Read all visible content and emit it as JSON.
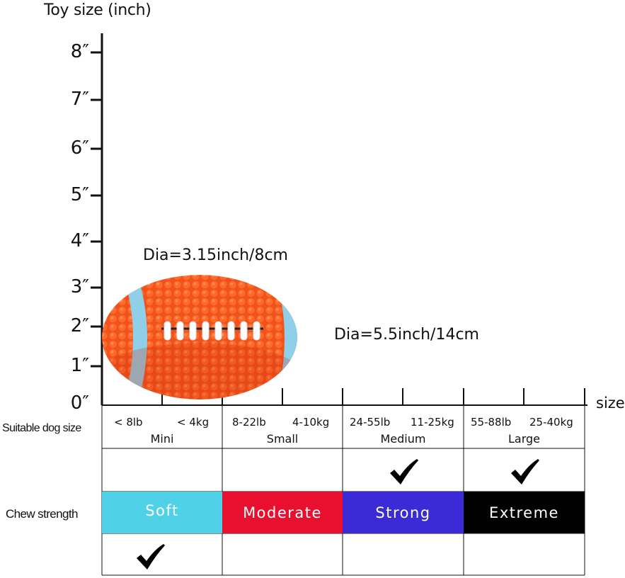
{
  "axis": {
    "title": "Toy size  (inch)",
    "ticks": [
      "8″",
      "7″",
      "6″",
      "5″",
      "4″",
      "3″",
      "2″",
      "1″",
      "0″"
    ],
    "x_label": "size"
  },
  "toy": {
    "image": "orange-football-icon",
    "dia_short": "Dia=3.15inch/8cm",
    "dia_long": "Dia=5.5inch/14cm"
  },
  "dog_size": {
    "heading": "Suitable dog size",
    "columns": [
      {
        "lb": "< 8lb",
        "kg": "< 4kg",
        "name": "Mini",
        "checked": false
      },
      {
        "lb": "8-22lb",
        "kg": "4-10kg",
        "name": "Small",
        "checked": false
      },
      {
        "lb": "24-55lb",
        "kg": "11-25kg",
        "name": "Medium",
        "checked": true
      },
      {
        "lb": "55-88lb",
        "kg": "25-40kg",
        "name": "Large",
        "checked": true
      }
    ]
  },
  "chew_strength": {
    "heading": "Chew strength",
    "levels": [
      {
        "label": "Soft",
        "color": "#4fd1e8",
        "checked": true
      },
      {
        "label": "Moderate",
        "color": "#e8102e",
        "checked": false
      },
      {
        "label": "Strong",
        "color": "#3b2bd6",
        "checked": false
      },
      {
        "label": "Extreme",
        "color": "#000000",
        "checked": false
      }
    ]
  },
  "check_icon": "checkmark-icon"
}
